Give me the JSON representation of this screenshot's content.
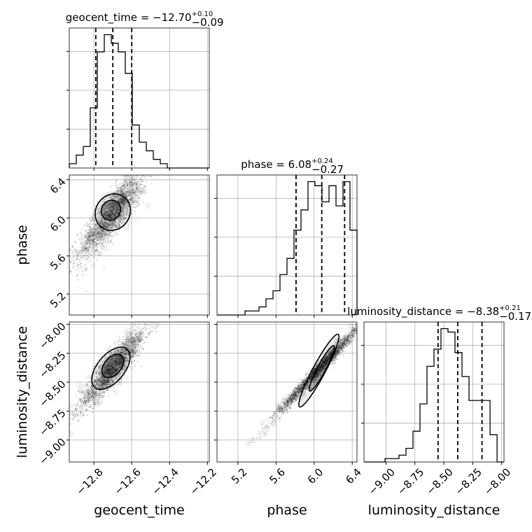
{
  "chart_data": {
    "type": "corner",
    "parameters": [
      "geocent_time",
      "phase",
      "luminosity_distance"
    ],
    "titles": [
      {
        "param": "geocent_time",
        "prefix": "geocent_time = ",
        "median": "−12.70",
        "plus": "+0.10",
        "minus": "−0.09"
      },
      {
        "param": "phase",
        "prefix": "phase = ",
        "median": "6.08",
        "plus": "+0.24",
        "minus": "−0.27"
      },
      {
        "param": "luminosity_distance",
        "prefix": "luminosity_distance = ",
        "median": "−8.38",
        "plus": "+0.21",
        "minus": "−0.17"
      }
    ],
    "axes": {
      "geocent_time": {
        "range": [
          -12.93,
          -12.19
        ],
        "ticks": [
          -12.8,
          -12.6,
          -12.4,
          -12.2
        ],
        "tick_labels": [
          "−12.8",
          "−12.6",
          "−12.4",
          "−12.2"
        ]
      },
      "phase": {
        "range": [
          4.98,
          6.45
        ],
        "ticks": [
          5.2,
          5.6,
          6.0,
          6.4
        ],
        "tick_labels": [
          "5.2",
          "5.6",
          "6.0",
          "6.4"
        ]
      },
      "luminosity_distance": {
        "range": [
          -9.19,
          -7.98
        ],
        "ticks": [
          -9.0,
          -8.75,
          -8.5,
          -8.25,
          -8.0
        ],
        "tick_labels": [
          "−9.00",
          "−8.75",
          "−8.50",
          "−8.25",
          "−8.00"
        ]
      }
    },
    "histograms": {
      "geocent_time": {
        "bin_edges": [
          -12.93,
          -12.893,
          -12.856,
          -12.819,
          -12.782,
          -12.745,
          -12.708,
          -12.671,
          -12.634,
          -12.597,
          -12.56,
          -12.523,
          -12.486,
          -12.449,
          -12.412,
          -12.375,
          -12.338,
          -12.301,
          -12.264,
          -12.227,
          -12.19
        ],
        "counts": [
          1,
          3,
          5,
          14,
          27,
          31,
          29,
          27,
          22,
          10,
          6,
          4,
          2,
          1,
          0,
          0,
          0,
          0,
          0,
          0
        ],
        "quantiles": [
          -12.79,
          -12.7,
          -12.6
        ]
      },
      "phase": {
        "bin_edges": [
          4.98,
          5.0535,
          5.127,
          5.2005,
          5.274,
          5.3475,
          5.421,
          5.4945,
          5.568,
          5.6415,
          5.715,
          5.7885,
          5.862,
          5.9355,
          6.009,
          6.0825,
          6.156,
          6.2295,
          6.303,
          6.3765,
          6.45
        ],
        "counts": [
          0,
          0,
          0,
          0,
          1,
          1,
          2,
          4,
          6,
          10,
          14,
          21,
          26,
          33,
          32,
          28,
          32,
          27,
          33,
          21
        ],
        "quantiles": [
          5.81,
          6.08,
          6.32
        ]
      },
      "luminosity_distance": {
        "bin_edges": [
          -9.19,
          -9.1295,
          -9.069,
          -9.0085,
          -8.948,
          -8.8875,
          -8.827,
          -8.7665,
          -8.706,
          -8.6455,
          -8.585,
          -8.5245,
          -8.464,
          -8.4035,
          -8.343,
          -8.2825,
          -8.222,
          -8.161,
          -8.1005,
          -8.04,
          -7.98
        ],
        "counts": [
          0,
          0,
          0,
          1,
          1,
          2,
          4,
          9,
          17,
          28,
          33,
          39,
          38,
          32,
          25,
          18,
          18,
          18,
          8,
          0
        ],
        "quantiles": [
          -8.55,
          -8.38,
          -8.17
        ]
      }
    },
    "grid": true
  }
}
